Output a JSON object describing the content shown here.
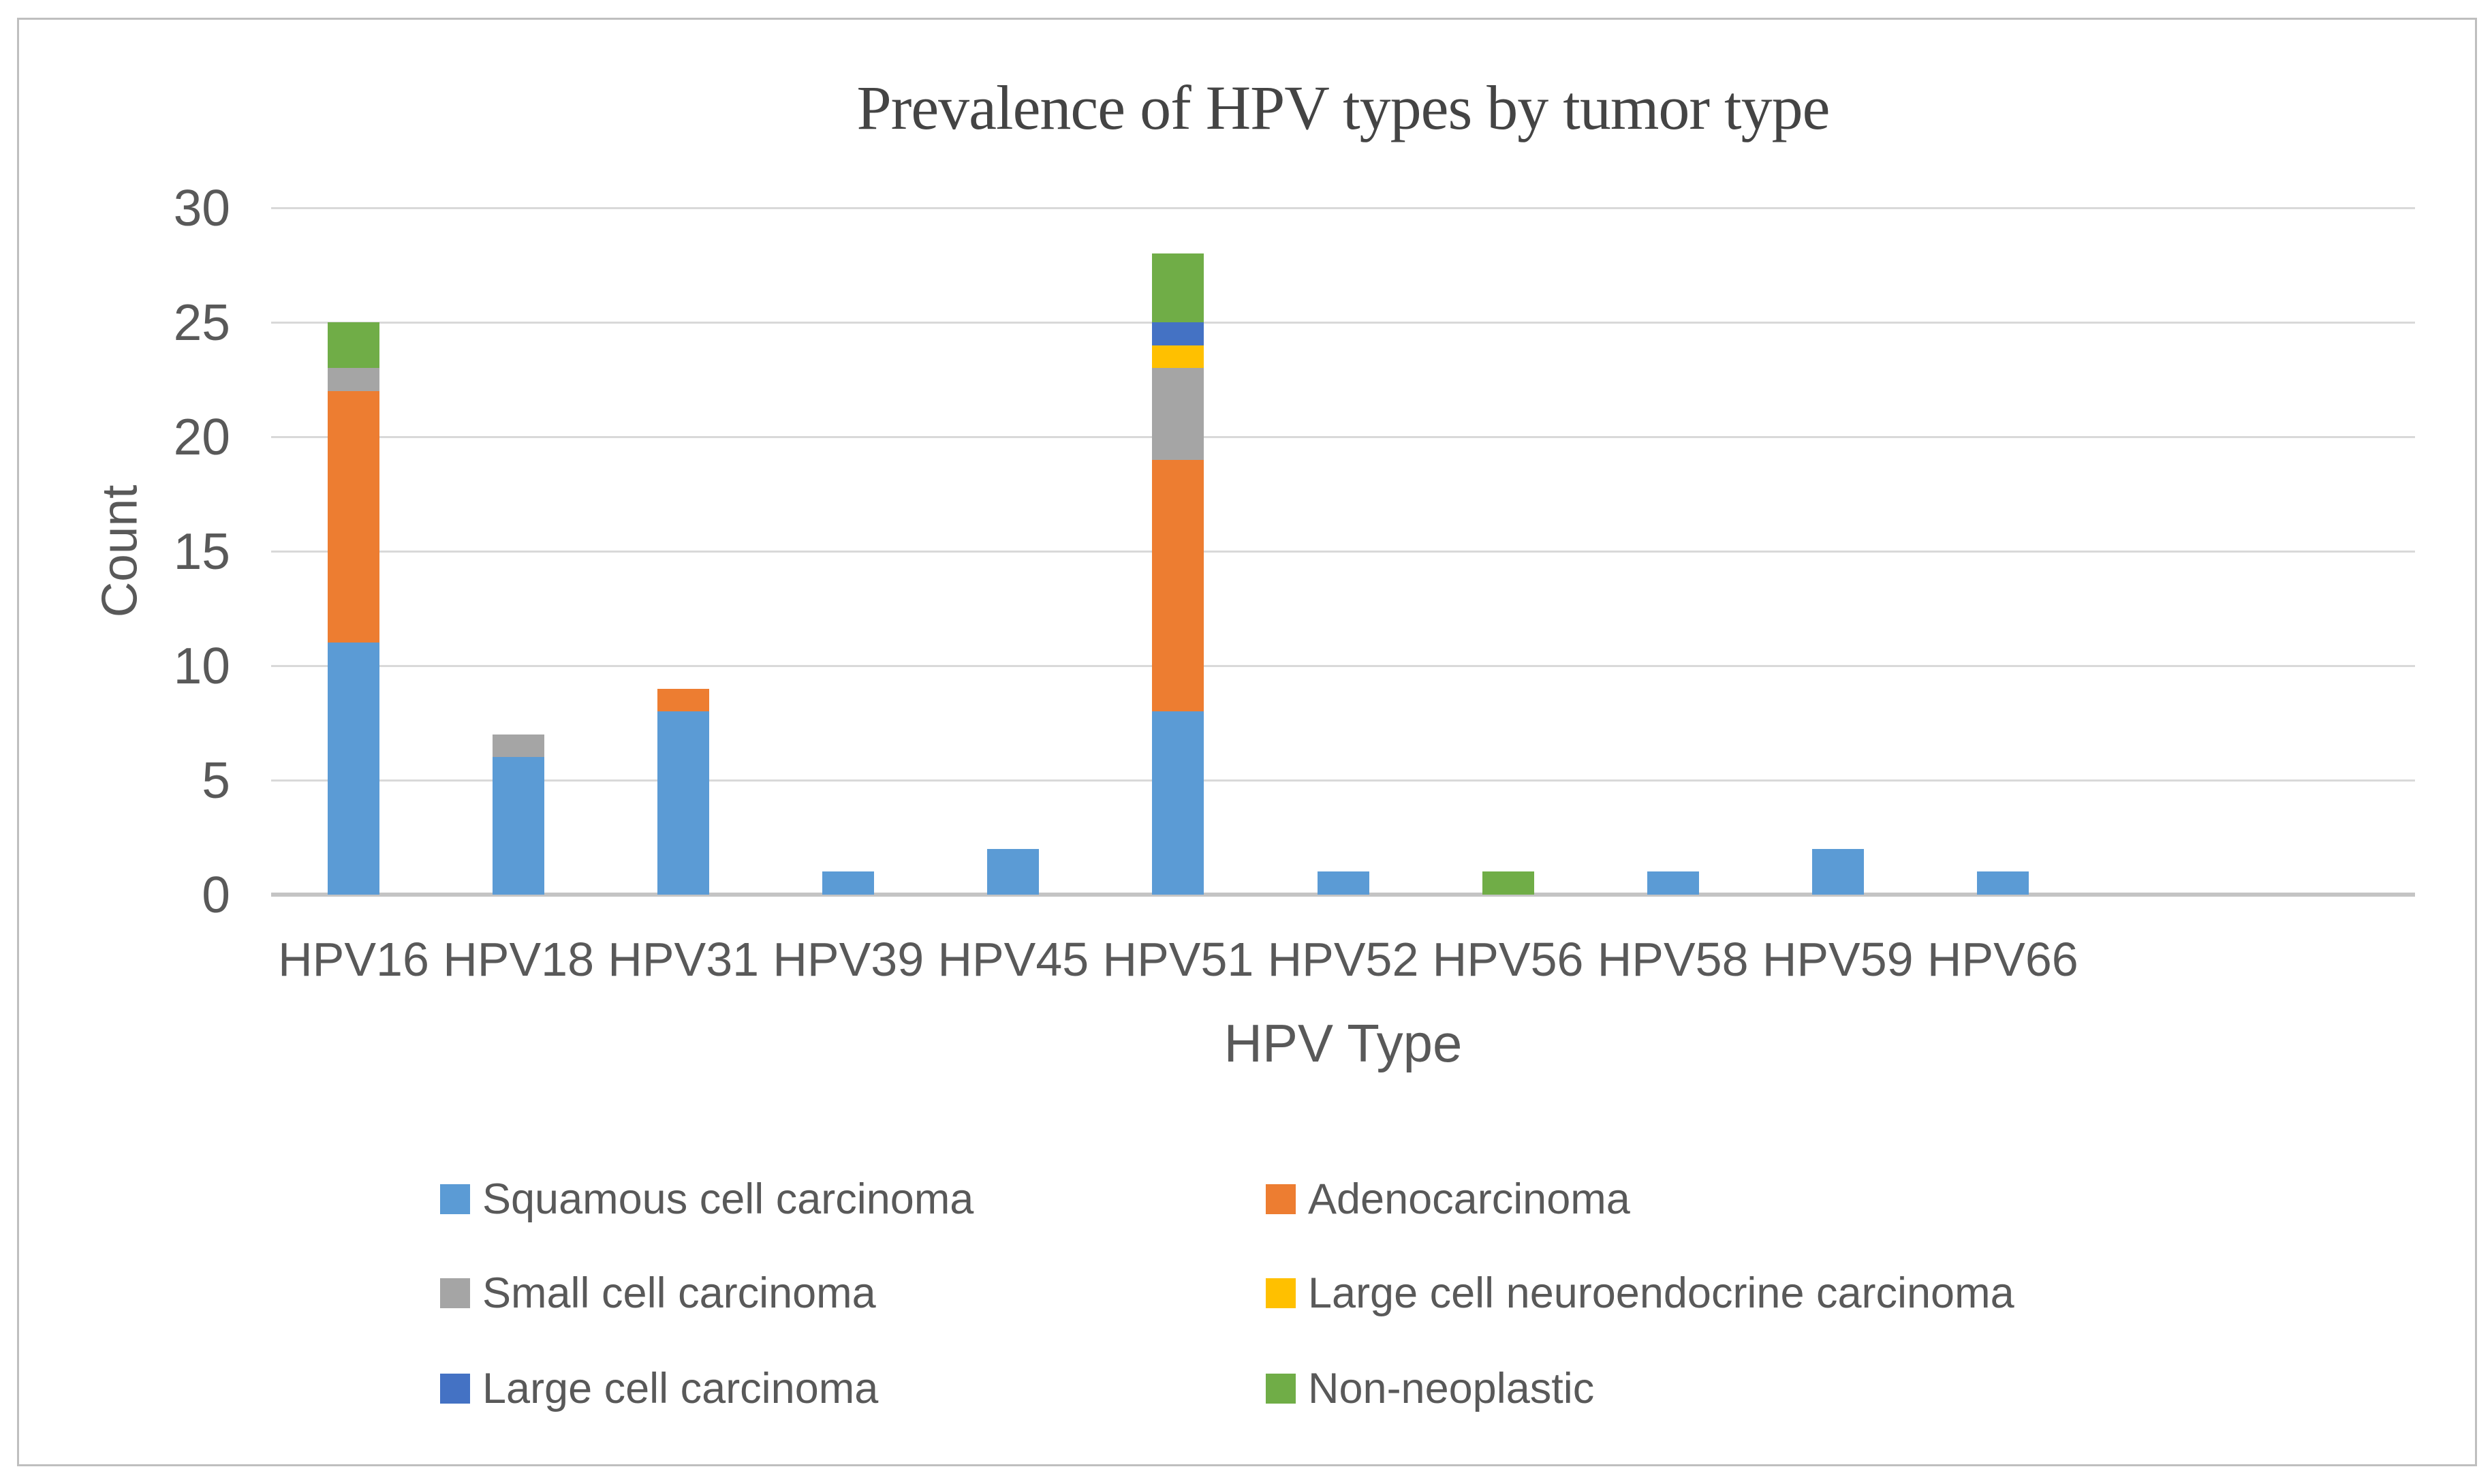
{
  "figure": {
    "title": "Prevalence of HPV types by tumor type",
    "x_axis_title": "HPV Type",
    "y_axis_title": "Count"
  },
  "colors": {
    "frame_border": "#BFBFBF",
    "gridline": "#D9D9D9",
    "axis_line": "#C4C4C4",
    "text": "#595959",
    "title_text": "#444444"
  },
  "chart_data": {
    "type": "bar",
    "stacked": true,
    "title": "Prevalence of HPV types by tumor type",
    "xlabel": "HPV Type",
    "ylabel": "Count",
    "ylim": [
      0,
      30
    ],
    "yticks": [
      0,
      5,
      10,
      15,
      20,
      25,
      30
    ],
    "grid": true,
    "legend_position": "bottom",
    "categories": [
      "HPV16",
      "HPV18",
      "HPV31",
      "HPV39",
      "HPV45",
      "HPV51",
      "HPV52",
      "HPV56",
      "HPV58",
      "HPV59",
      "HPV66"
    ],
    "series": [
      {
        "name": "Squamous cell carcinoma",
        "color": "#5B9BD5",
        "values": [
          11,
          6,
          8,
          1,
          2,
          8,
          1,
          0,
          1,
          2,
          1
        ]
      },
      {
        "name": "Adenocarcinoma",
        "color": "#ED7D31",
        "values": [
          11,
          0,
          1,
          0,
          0,
          11,
          0,
          0,
          0,
          0,
          0
        ]
      },
      {
        "name": "Small cell carcinoma",
        "color": "#A5A5A5",
        "values": [
          1,
          1,
          0,
          0,
          0,
          4,
          0,
          0,
          0,
          0,
          0
        ]
      },
      {
        "name": "Large cell neuroendocrine carcinoma",
        "color": "#FFC000",
        "values": [
          0,
          0,
          0,
          0,
          0,
          1,
          0,
          0,
          0,
          0,
          0
        ]
      },
      {
        "name": "Large cell carcinoma",
        "color": "#4472C4",
        "values": [
          0,
          0,
          0,
          0,
          0,
          1,
          0,
          0,
          0,
          0,
          0
        ]
      },
      {
        "name": "Non-neoplastic",
        "color": "#70AD47",
        "values": [
          2,
          0,
          0,
          0,
          0,
          3,
          0,
          1,
          0,
          0,
          0
        ]
      }
    ]
  }
}
